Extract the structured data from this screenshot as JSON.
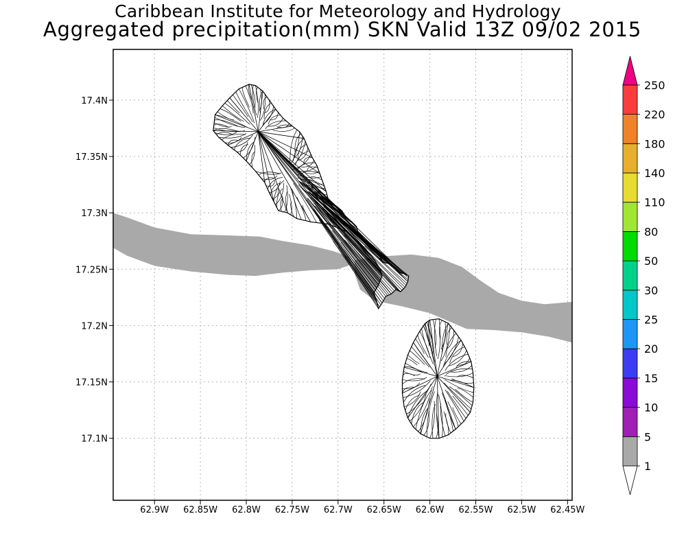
{
  "title": {
    "line1": "Caribbean Institute for Meteorology and Hydrology",
    "line2": "Aggregated precipitation(mm) SKN Valid 13Z 09/02 2015"
  },
  "map": {
    "lon_range": [
      -62.945,
      -62.445
    ],
    "lat_range": [
      17.045,
      17.445
    ],
    "grid": "dotted",
    "x_ticks": [
      {
        "lon": -62.9,
        "label": "62.9W"
      },
      {
        "lon": -62.85,
        "label": "62.85W"
      },
      {
        "lon": -62.8,
        "label": "62.8W"
      },
      {
        "lon": -62.75,
        "label": "62.75W"
      },
      {
        "lon": -62.7,
        "label": "62.7W"
      },
      {
        "lon": -62.65,
        "label": "62.65W"
      },
      {
        "lon": -62.6,
        "label": "62.6W"
      },
      {
        "lon": -62.55,
        "label": "62.55W"
      },
      {
        "lon": -62.5,
        "label": "62.5W"
      },
      {
        "lon": -62.45,
        "label": "62.45W"
      }
    ],
    "y_ticks": [
      {
        "lat": 17.4,
        "label": "17.4N"
      },
      {
        "lat": 17.35,
        "label": "17.35N"
      },
      {
        "lat": 17.3,
        "label": "17.3N"
      },
      {
        "lat": 17.25,
        "label": "17.25N"
      },
      {
        "lat": 17.2,
        "label": "17.2N"
      },
      {
        "lat": 17.15,
        "label": "17.15N"
      },
      {
        "lat": 17.1,
        "label": "17.1N"
      }
    ],
    "precip_color": "#a9a9a9",
    "precip_bands": [
      {
        "name": "west-band",
        "category": "1-5 mm",
        "top": [
          [
            -62.945,
            17.3
          ],
          [
            -62.93,
            17.296
          ],
          [
            -62.9,
            17.287
          ],
          [
            -62.86,
            17.281
          ],
          [
            -62.82,
            17.28
          ],
          [
            -62.785,
            17.279
          ],
          [
            -62.76,
            17.275
          ],
          [
            -62.73,
            17.271
          ],
          [
            -62.705,
            17.266
          ],
          [
            -62.688,
            17.261
          ]
        ],
        "bottom": [
          [
            -62.686,
            17.254
          ],
          [
            -62.7,
            17.25
          ],
          [
            -62.73,
            17.249
          ],
          [
            -62.76,
            17.247
          ],
          [
            -62.79,
            17.244
          ],
          [
            -62.82,
            17.245
          ],
          [
            -62.86,
            17.248
          ],
          [
            -62.9,
            17.253
          ],
          [
            -62.93,
            17.262
          ],
          [
            -62.945,
            17.269
          ]
        ]
      },
      {
        "name": "east-band",
        "category": "1-5 mm",
        "top": [
          [
            -62.682,
            17.258
          ],
          [
            -62.66,
            17.261
          ],
          [
            -62.62,
            17.263
          ],
          [
            -62.59,
            17.26
          ],
          [
            -62.565,
            17.252
          ],
          [
            -62.545,
            17.24
          ],
          [
            -62.525,
            17.229
          ],
          [
            -62.5,
            17.222
          ],
          [
            -62.475,
            17.219
          ],
          [
            -62.445,
            17.221
          ]
        ],
        "bottom": [
          [
            -62.445,
            17.185
          ],
          [
            -62.47,
            17.19
          ],
          [
            -62.5,
            17.194
          ],
          [
            -62.53,
            17.196
          ],
          [
            -62.56,
            17.197
          ],
          [
            -62.58,
            17.204
          ],
          [
            -62.6,
            17.211
          ],
          [
            -62.63,
            17.217
          ],
          [
            -62.66,
            17.222
          ],
          [
            -62.676,
            17.232
          ],
          [
            -62.682,
            17.246
          ]
        ]
      }
    ],
    "islands": [
      {
        "name": "St. Kitts",
        "outline": [
          [
            -62.797,
            17.414
          ],
          [
            -62.79,
            17.413
          ],
          [
            -62.782,
            17.408
          ],
          [
            -62.775,
            17.4
          ],
          [
            -62.768,
            17.392
          ],
          [
            -62.76,
            17.384
          ],
          [
            -62.75,
            17.377
          ],
          [
            -62.742,
            17.372
          ],
          [
            -62.737,
            17.366
          ],
          [
            -62.733,
            17.358
          ],
          [
            -62.728,
            17.349
          ],
          [
            -62.723,
            17.342
          ],
          [
            -62.72,
            17.335
          ],
          [
            -62.716,
            17.326
          ],
          [
            -62.713,
            17.319
          ],
          [
            -62.71,
            17.31
          ],
          [
            -62.702,
            17.306
          ],
          [
            -62.696,
            17.302
          ],
          [
            -62.692,
            17.297
          ],
          [
            -62.685,
            17.292
          ],
          [
            -62.68,
            17.288
          ],
          [
            -62.678,
            17.282
          ],
          [
            -62.672,
            17.277
          ],
          [
            -62.666,
            17.272
          ],
          [
            -62.661,
            17.268
          ],
          [
            -62.655,
            17.262
          ],
          [
            -62.651,
            17.256
          ],
          [
            -62.645,
            17.255
          ],
          [
            -62.638,
            17.251
          ],
          [
            -62.633,
            17.247
          ],
          [
            -62.628,
            17.246
          ],
          [
            -62.623,
            17.244
          ],
          [
            -62.624,
            17.239
          ],
          [
            -62.627,
            17.234
          ],
          [
            -62.632,
            17.23
          ],
          [
            -62.637,
            17.232
          ],
          [
            -62.642,
            17.228
          ],
          [
            -62.648,
            17.226
          ],
          [
            -62.652,
            17.22
          ],
          [
            -62.656,
            17.215
          ],
          [
            -62.658,
            17.222
          ],
          [
            -62.661,
            17.229
          ],
          [
            -62.656,
            17.236
          ],
          [
            -62.652,
            17.244
          ],
          [
            -62.654,
            17.25
          ],
          [
            -62.662,
            17.26
          ],
          [
            -62.67,
            17.268
          ],
          [
            -62.68,
            17.275
          ],
          [
            -62.69,
            17.283
          ],
          [
            -62.71,
            17.29
          ],
          [
            -62.73,
            17.292
          ],
          [
            -62.745,
            17.295
          ],
          [
            -62.755,
            17.3
          ],
          [
            -62.765,
            17.302
          ],
          [
            -62.77,
            17.31
          ],
          [
            -62.775,
            17.318
          ],
          [
            -62.78,
            17.327
          ],
          [
            -62.79,
            17.337
          ],
          [
            -62.8,
            17.346
          ],
          [
            -62.81,
            17.354
          ],
          [
            -62.82,
            17.36
          ],
          [
            -62.83,
            17.367
          ],
          [
            -62.836,
            17.373
          ],
          [
            -62.835,
            17.38
          ],
          [
            -62.834,
            17.387
          ],
          [
            -62.826,
            17.395
          ],
          [
            -62.818,
            17.402
          ],
          [
            -62.808,
            17.41
          ]
        ],
        "hub": [
          -62.787,
          17.372
        ],
        "hub2": [
          -62.755,
          17.335
        ]
      },
      {
        "name": "Nevis",
        "outline": [
          [
            -62.6,
            17.205
          ],
          [
            -62.59,
            17.206
          ],
          [
            -62.58,
            17.202
          ],
          [
            -62.574,
            17.196
          ],
          [
            -62.566,
            17.187
          ],
          [
            -62.56,
            17.178
          ],
          [
            -62.555,
            17.168
          ],
          [
            -62.553,
            17.158
          ],
          [
            -62.552,
            17.145
          ],
          [
            -62.553,
            17.132
          ],
          [
            -62.556,
            17.123
          ],
          [
            -62.563,
            17.115
          ],
          [
            -62.572,
            17.108
          ],
          [
            -62.58,
            17.103
          ],
          [
            -62.59,
            17.1
          ],
          [
            -62.6,
            17.1
          ],
          [
            -62.61,
            17.104
          ],
          [
            -62.618,
            17.11
          ],
          [
            -62.624,
            17.118
          ],
          [
            -62.628,
            17.128
          ],
          [
            -62.63,
            17.14
          ],
          [
            -62.63,
            17.152
          ],
          [
            -62.628,
            17.163
          ],
          [
            -62.624,
            17.174
          ],
          [
            -62.618,
            17.185
          ],
          [
            -62.611,
            17.195
          ],
          [
            -62.605,
            17.202
          ]
        ],
        "hub": [
          -62.592,
          17.155
        ]
      }
    ]
  },
  "colorbar": {
    "labels": [
      "1",
      "5",
      "10",
      "15",
      "20",
      "25",
      "30",
      "50",
      "80",
      "110",
      "140",
      "180",
      "220",
      "250"
    ],
    "colors": [
      "#a9a9a9",
      "#a01fb4",
      "#8a0ad6",
      "#3c3cf5",
      "#1e96f5",
      "#00c8c8",
      "#00d28c",
      "#00dc00",
      "#a0e632",
      "#e6dc32",
      "#e6af2d",
      "#f08228",
      "#fa3c3c",
      "#f00082"
    ],
    "arrow_bottom_color": "#ffffff",
    "arrow_top_color": "#f00082"
  }
}
